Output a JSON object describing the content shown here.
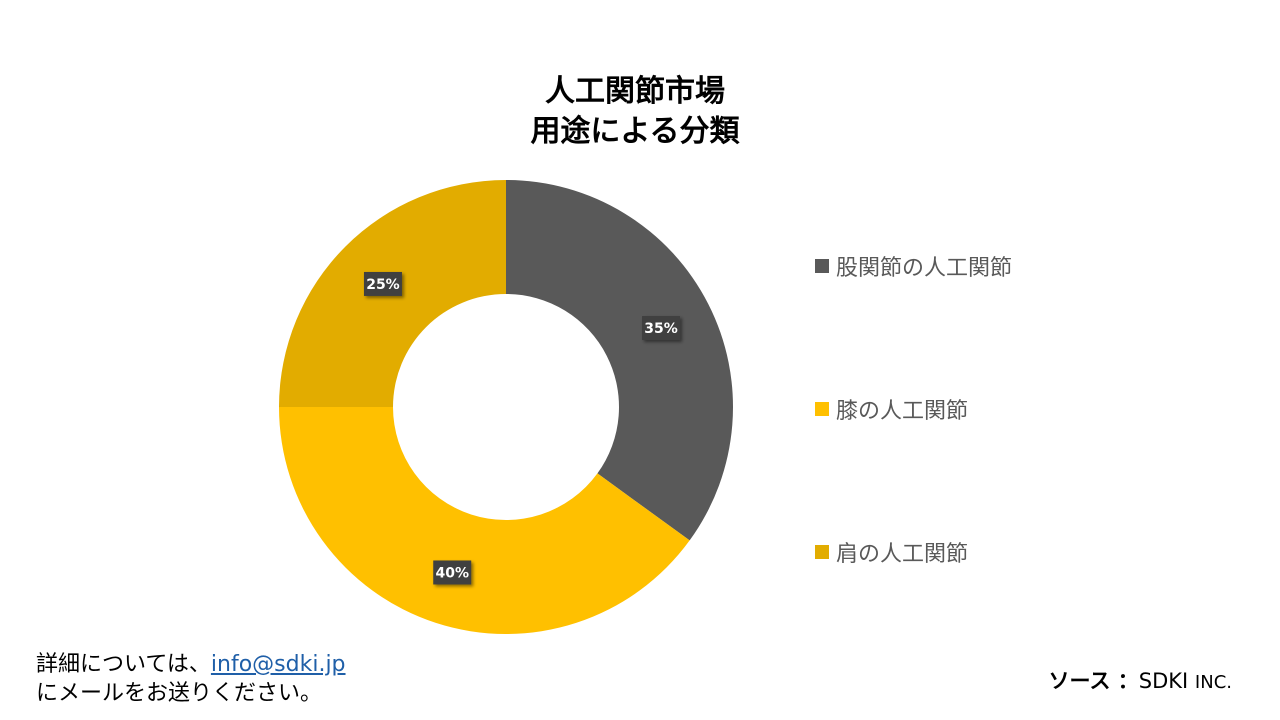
{
  "title": {
    "line1": "人工関節市場",
    "line2": "用途による分類"
  },
  "chart_data": {
    "type": "pie",
    "variant": "donut",
    "categories": [
      "股関節の人工関節",
      "膝の人工関節",
      "肩の人工関節"
    ],
    "values": [
      35,
      40,
      25
    ],
    "labels": [
      "35%",
      "40%",
      "25%"
    ],
    "colors": [
      "#595959",
      "#FFC000",
      "#E2AC00"
    ],
    "legend_position": "right"
  },
  "footer": {
    "line1_prefix": "詳細については、",
    "email": "info@sdki.jp",
    "line2": "にメールをお送りください。"
  },
  "source": {
    "label": "ソース ：",
    "name": "SDKI",
    "suffix": "INC."
  }
}
